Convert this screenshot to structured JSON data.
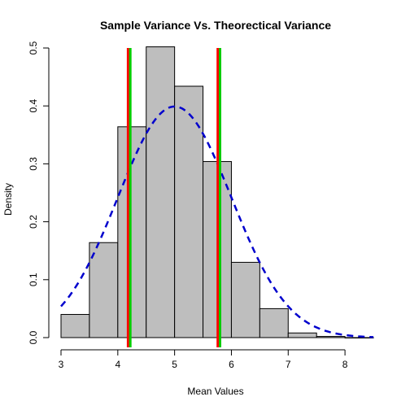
{
  "chart_data": {
    "type": "bar",
    "title": "Sample Variance Vs. Theorectical Variance",
    "xlabel": "Mean Values",
    "ylabel": "Density",
    "xlim": [
      3,
      8.5
    ],
    "ylim": [
      0,
      0.5
    ],
    "x_ticks": [
      "3",
      "4",
      "5",
      "6",
      "7",
      "8"
    ],
    "y_ticks": [
      "0.0",
      "0.1",
      "0.2",
      "0.3",
      "0.4",
      "0.5"
    ],
    "histogram": {
      "bin_edges": [
        3.0,
        3.5,
        4.0,
        4.5,
        5.0,
        5.5,
        6.0,
        6.5,
        7.0,
        7.5,
        8.0,
        8.5
      ],
      "density": [
        0.04,
        0.164,
        0.364,
        0.502,
        0.434,
        0.304,
        0.13,
        0.05,
        0.008,
        0.002,
        0.0
      ],
      "fill_color": "#bebebe",
      "edge_color": "#000000"
    },
    "density_curve": {
      "style": "dashed",
      "color": "#0000cd",
      "mean": 5.0,
      "sd": 1.0
    },
    "vertical_lines": [
      {
        "x": 4.18,
        "color": "#ff0000"
      },
      {
        "x": 4.22,
        "color": "#00cc00"
      },
      {
        "x": 5.76,
        "color": "#ff0000"
      },
      {
        "x": 5.8,
        "color": "#00cc00"
      }
    ],
    "grid": false
  }
}
